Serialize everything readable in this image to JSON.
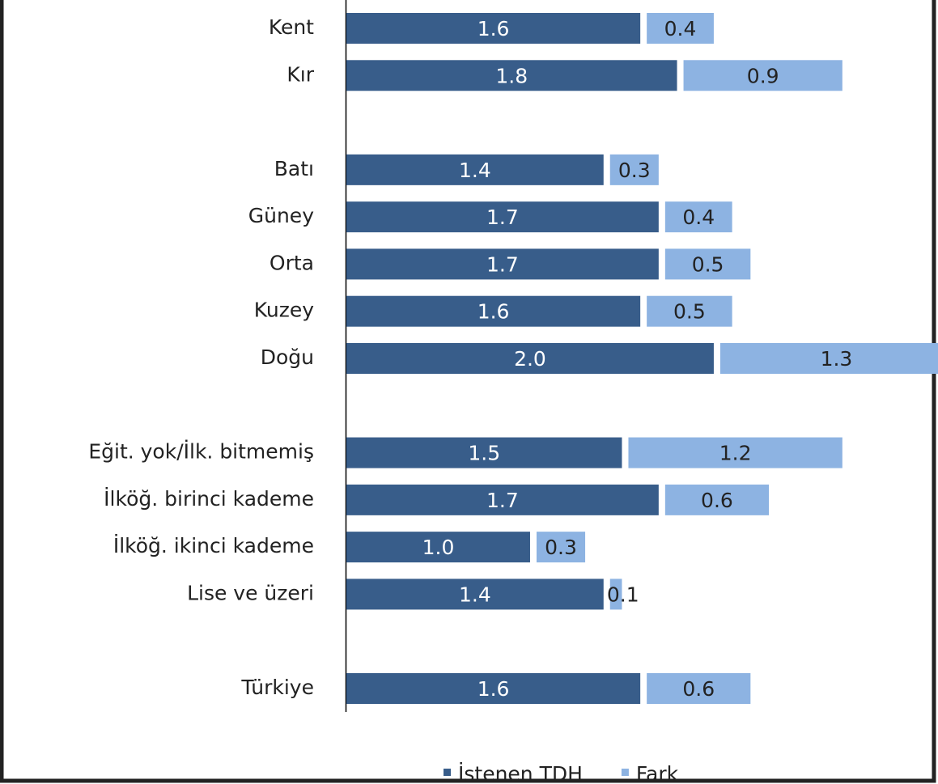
{
  "chart_data": {
    "type": "bar",
    "orientation": "horizontal",
    "stacked": true,
    "categories": [
      "Kent",
      "Kır",
      null,
      "Batı",
      "Güney",
      "Orta",
      "Kuzey",
      "Doğu",
      null,
      "Eğit. yok/İlk. bitmemiş",
      "İlköğ. birinci kademe",
      "İlköğ. ikinci kademe",
      "Lise ve üzeri",
      null,
      "Türkiye"
    ],
    "series": [
      {
        "name": "İstenen TDH",
        "color": "#385d8a",
        "values": [
          1.6,
          1.8,
          null,
          1.4,
          1.7,
          1.7,
          1.6,
          2.0,
          null,
          1.5,
          1.7,
          1.0,
          1.4,
          null,
          1.6
        ],
        "value_labels": [
          "1.6",
          "1.8",
          null,
          "1.4",
          "1.7",
          "1.7",
          "1.6",
          "2.0",
          null,
          "1.5",
          "1.7",
          "1.0",
          "1.4",
          null,
          "1.6"
        ]
      },
      {
        "name": "Fark",
        "color": "#8db3e2",
        "values": [
          0.4,
          0.9,
          null,
          0.3,
          0.4,
          0.5,
          0.5,
          1.3,
          null,
          1.2,
          0.6,
          0.3,
          0.1,
          null,
          0.6
        ],
        "value_labels": [
          "0.4",
          "0.9",
          null,
          "0.3",
          "0.4",
          "0.5",
          "0.5",
          "1.3",
          null,
          "1.2",
          "0.6",
          "0.3",
          "0.1",
          null,
          "0.6"
        ]
      }
    ],
    "xlim": [
      0,
      3.3
    ],
    "legend": "bottom"
  }
}
